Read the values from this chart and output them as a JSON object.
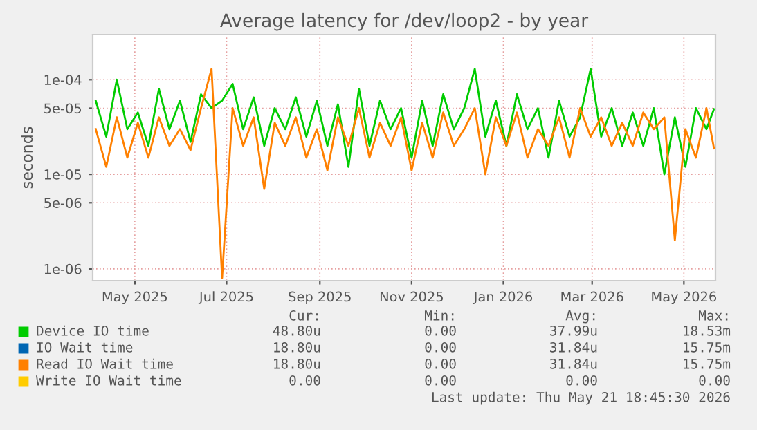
{
  "chart_data": {
    "type": "line",
    "title": "Average latency for /dev/loop2 - by year",
    "ylabel": "seconds",
    "log": "y",
    "grid": true,
    "legend": "bottom",
    "line_style": "solid",
    "marker": "none",
    "x": [
      "2025-04-05",
      "2025-04-12",
      "2025-04-19",
      "2025-04-26",
      "2025-05-03",
      "2025-05-10",
      "2025-05-17",
      "2025-05-24",
      "2025-05-31",
      "2025-06-07",
      "2025-06-14",
      "2025-06-21",
      "2025-06-28",
      "2025-07-05",
      "2025-07-12",
      "2025-07-19",
      "2025-07-26",
      "2025-08-02",
      "2025-08-09",
      "2025-08-16",
      "2025-08-23",
      "2025-08-30",
      "2025-09-06",
      "2025-09-13",
      "2025-09-20",
      "2025-09-27",
      "2025-10-04",
      "2025-10-11",
      "2025-10-18",
      "2025-10-25",
      "2025-11-01",
      "2025-11-08",
      "2025-11-15",
      "2025-11-22",
      "2025-11-29",
      "2025-12-06",
      "2025-12-13",
      "2025-12-20",
      "2025-12-27",
      "2026-01-03",
      "2026-01-10",
      "2026-01-17",
      "2026-01-24",
      "2026-01-31",
      "2026-02-07",
      "2026-02-14",
      "2026-02-21",
      "2026-02-28",
      "2026-03-07",
      "2026-03-14",
      "2026-03-21",
      "2026-03-28",
      "2026-04-04",
      "2026-04-11",
      "2026-04-18",
      "2026-04-25",
      "2026-05-02",
      "2026-05-09",
      "2026-05-16",
      "2026-05-21"
    ],
    "xlim": [
      "2025-04-03",
      "2026-05-22"
    ],
    "xticks": [
      {
        "value": "2025-05-01",
        "label": "May 2025"
      },
      {
        "value": "2025-07-01",
        "label": "Jul 2025"
      },
      {
        "value": "2025-09-01",
        "label": "Sep 2025"
      },
      {
        "value": "2025-11-01",
        "label": "Nov 2025"
      },
      {
        "value": "2026-01-01",
        "label": "Jan 2026"
      },
      {
        "value": "2026-03-01",
        "label": "Mar 2026"
      },
      {
        "value": "2026-05-01",
        "label": "May 2026"
      }
    ],
    "ylim": [
      7.5e-07,
      0.0003
    ],
    "yticks": [
      {
        "value": 1e-06,
        "label": "1e-06"
      },
      {
        "value": 5e-06,
        "label": "5e-06"
      },
      {
        "value": 1e-05,
        "label": "1e-05"
      },
      {
        "value": 5e-05,
        "label": "5e-05"
      },
      {
        "value": 0.0001,
        "label": "1e-04"
      }
    ],
    "series": [
      {
        "name": "Device IO time",
        "color": "#00cc00",
        "values": [
          6e-05,
          2.5e-05,
          0.0001,
          3e-05,
          4.5e-05,
          2e-05,
          8e-05,
          3e-05,
          6e-05,
          2.2e-05,
          7e-05,
          5e-05,
          6e-05,
          9e-05,
          3e-05,
          6.5e-05,
          2e-05,
          5e-05,
          3e-05,
          6.5e-05,
          2.5e-05,
          6e-05,
          2e-05,
          5.5e-05,
          1.2e-05,
          8e-05,
          2e-05,
          6e-05,
          3e-05,
          5e-05,
          1.5e-05,
          6e-05,
          2e-05,
          7e-05,
          3e-05,
          5e-05,
          0.00013,
          2.5e-05,
          6e-05,
          2e-05,
          7e-05,
          3e-05,
          5e-05,
          1.5e-05,
          6e-05,
          2.5e-05,
          4e-05,
          0.00013,
          2.5e-05,
          5e-05,
          2e-05,
          4.5e-05,
          2e-05,
          5e-05,
          1e-05,
          4e-05,
          1.2e-05,
          5e-05,
          3e-05,
          4.88e-05
        ]
      },
      {
        "name": "IO Wait time",
        "color": "#0066b3",
        "values": [
          null,
          null,
          null,
          null,
          null,
          null,
          null,
          null,
          null,
          null,
          null,
          null,
          null,
          null,
          null,
          null,
          null,
          null,
          null,
          null,
          null,
          null,
          null,
          null,
          null,
          null,
          null,
          null,
          null,
          null,
          null,
          null,
          null,
          null,
          null,
          null,
          null,
          null,
          null,
          null,
          null,
          null,
          null,
          null,
          null,
          null,
          null,
          null,
          null,
          null,
          null,
          null,
          null,
          null,
          null,
          null,
          null,
          null,
          null,
          null
        ]
      },
      {
        "name": "Read IO Wait time",
        "color": "#ff8000",
        "values": [
          3e-05,
          1.2e-05,
          4e-05,
          1.5e-05,
          3.5e-05,
          1.5e-05,
          4e-05,
          2e-05,
          3e-05,
          1.8e-05,
          5e-05,
          0.00013,
          8e-07,
          5e-05,
          2e-05,
          4e-05,
          7e-06,
          3.5e-05,
          2e-05,
          4e-05,
          1.5e-05,
          3e-05,
          1.1e-05,
          4e-05,
          2e-05,
          5e-05,
          1.5e-05,
          3.5e-05,
          2e-05,
          4e-05,
          1.1e-05,
          3.5e-05,
          1.5e-05,
          4.5e-05,
          2e-05,
          3e-05,
          5e-05,
          1e-05,
          4e-05,
          2e-05,
          4.5e-05,
          1.5e-05,
          3e-05,
          2e-05,
          4e-05,
          1.5e-05,
          5e-05,
          2.5e-05,
          4e-05,
          2e-05,
          3.5e-05,
          2e-05,
          4.5e-05,
          3e-05,
          4e-05,
          2e-06,
          3e-05,
          1.5e-05,
          5e-05,
          1.88e-05
        ]
      },
      {
        "name": "Write IO Wait time",
        "color": "#ffcc00",
        "values": [
          null,
          null,
          null,
          null,
          null,
          null,
          null,
          null,
          null,
          null,
          null,
          null,
          null,
          null,
          null,
          null,
          null,
          null,
          null,
          null,
          null,
          null,
          null,
          null,
          null,
          null,
          null,
          null,
          null,
          null,
          null,
          null,
          null,
          null,
          null,
          null,
          null,
          null,
          null,
          null,
          null,
          null,
          null,
          null,
          null,
          null,
          null,
          null,
          null,
          null,
          null,
          null,
          null,
          null,
          null,
          null,
          null,
          null,
          null,
          null
        ]
      }
    ],
    "annotations": [
      "Cur:",
      "Min:",
      "Avg:",
      "Max:",
      "48.80u",
      "0.00",
      "37.99u",
      "18.53m",
      "18.80u",
      "0.00",
      "31.84u",
      "15.75m",
      "18.80u",
      "0.00",
      "31.84u",
      "15.75m",
      "0.00",
      "0.00",
      "0.00",
      "0.00",
      "Last update: Thu May 21 18:45:30 2026"
    ]
  }
}
